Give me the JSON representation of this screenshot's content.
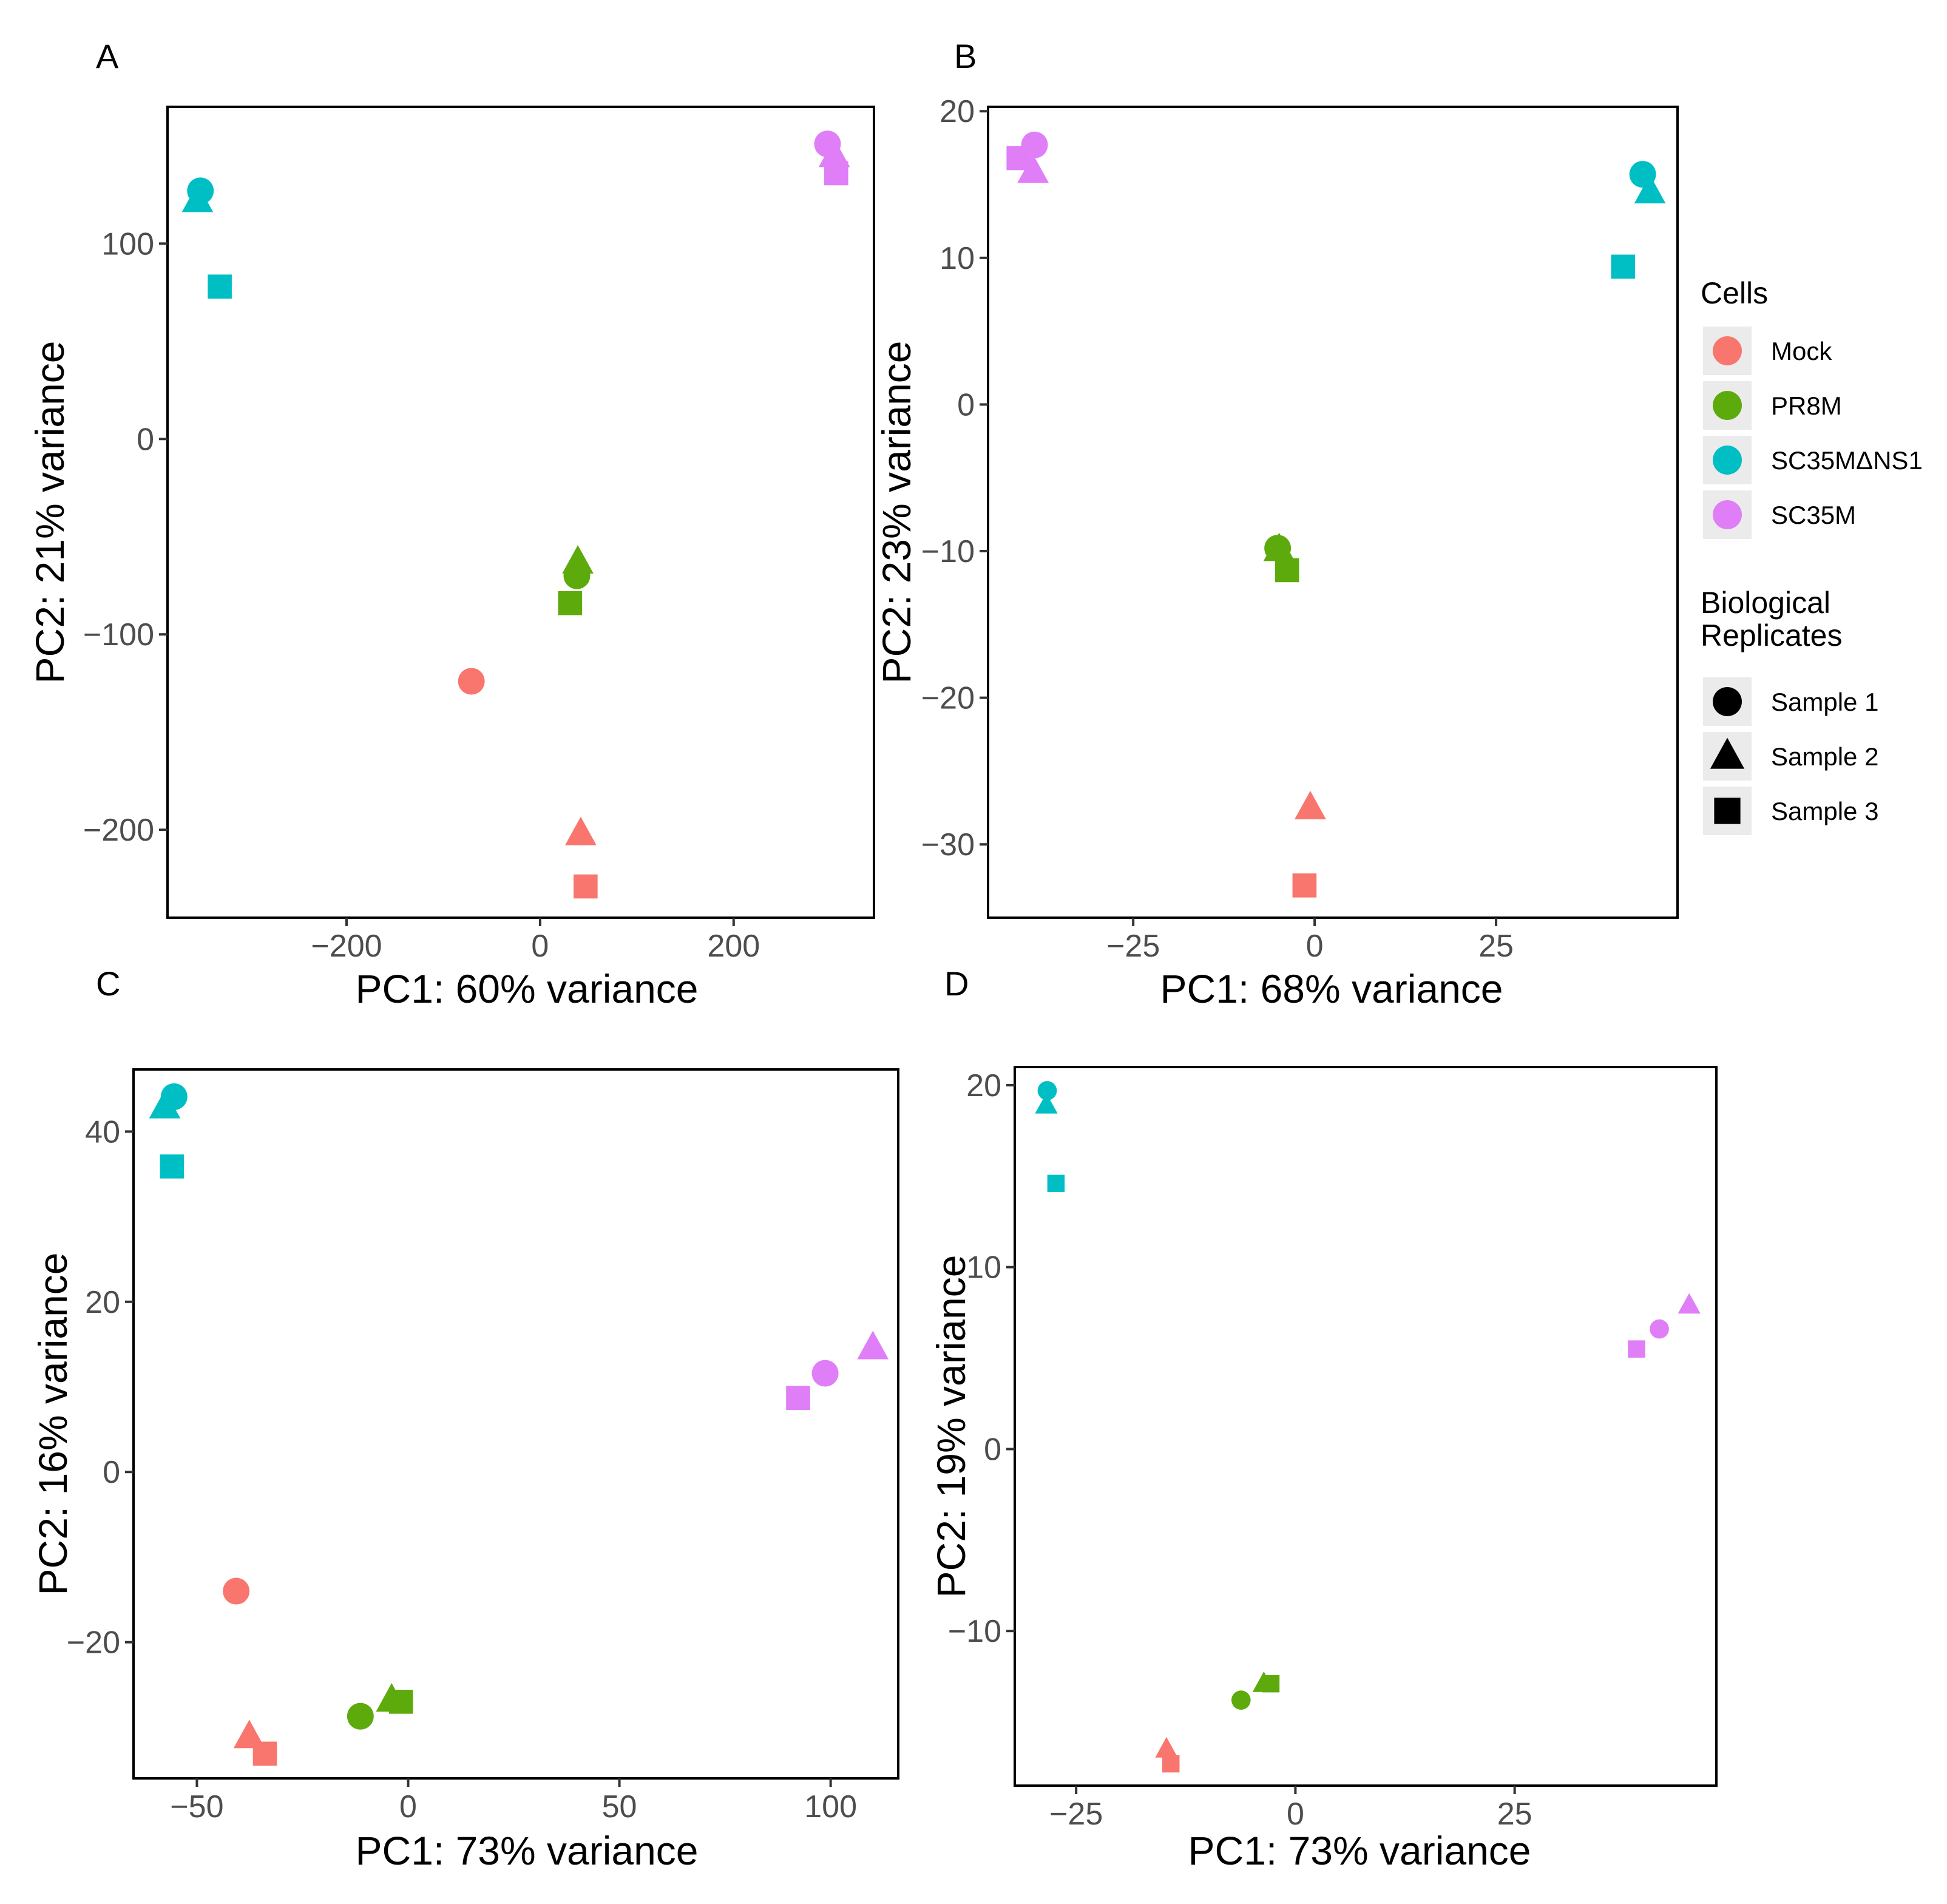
{
  "colors": {
    "Mock": "#F8766D",
    "PR8M": "#5DAA0C",
    "SC35MΔNS1": "#00BFC4",
    "SC35M": "#DF7EF7",
    "shape_key": "#000000"
  },
  "legend": {
    "cells_title": "Cells",
    "cells": [
      "Mock",
      "PR8M",
      "SC35MΔNS1",
      "SC35M"
    ],
    "replicates_title": "Biological Replicates",
    "replicates_title_lines": [
      "Biological",
      "Replicates"
    ],
    "replicates": [
      {
        "label": "Sample 1",
        "shape": "circle"
      },
      {
        "label": "Sample 2",
        "shape": "triangle"
      },
      {
        "label": "Sample 3",
        "shape": "square"
      }
    ]
  },
  "chart_data": [
    {
      "panel": "A",
      "type": "scatter",
      "xlabel": "PC1: 60% variance",
      "ylabel": "PC2: 21% variance",
      "xlim": [
        -385,
        345
      ],
      "ylim": [
        -245,
        170
      ],
      "xticks": [
        -200,
        0,
        200
      ],
      "xtick_labels": [
        "−200",
        "0",
        "200"
      ],
      "yticks": [
        100,
        0,
        -100,
        -200
      ],
      "ytick_labels": [
        "100",
        "0",
        "−100",
        "−200"
      ],
      "points": [
        {
          "cell": "SC35MΔNS1",
          "sample": "Sample 1",
          "x": -351,
          "y": 127
        },
        {
          "cell": "SC35MΔNS1",
          "sample": "Sample 2",
          "x": -354,
          "y": 122
        },
        {
          "cell": "SC35MΔNS1",
          "sample": "Sample 3",
          "x": -331,
          "y": 78
        },
        {
          "cell": "SC35M",
          "sample": "Sample 1",
          "x": 297,
          "y": 151
        },
        {
          "cell": "SC35M",
          "sample": "Sample 2",
          "x": 304,
          "y": 145
        },
        {
          "cell": "SC35M",
          "sample": "Sample 3",
          "x": 306,
          "y": 136
        },
        {
          "cell": "PR8M",
          "sample": "Sample 1",
          "x": 38,
          "y": -70
        },
        {
          "cell": "PR8M",
          "sample": "Sample 2",
          "x": 39,
          "y": -63
        },
        {
          "cell": "PR8M",
          "sample": "Sample 3",
          "x": 31,
          "y": -84
        },
        {
          "cell": "Mock",
          "sample": "Sample 1",
          "x": -71,
          "y": -124
        },
        {
          "cell": "Mock",
          "sample": "Sample 2",
          "x": 42,
          "y": -202
        },
        {
          "cell": "Mock",
          "sample": "Sample 3",
          "x": 47,
          "y": -229
        }
      ]
    },
    {
      "panel": "B",
      "type": "scatter",
      "xlabel": "PC1: 68% variance",
      "ylabel": "PC2: 23% variance",
      "xlim": [
        -45,
        50
      ],
      "ylim": [
        -35,
        20.3
      ],
      "xticks": [
        -25,
        0,
        25
      ],
      "xtick_labels": [
        "−25",
        "0",
        "25"
      ],
      "yticks": [
        20,
        10,
        0,
        -10,
        -20,
        -30
      ],
      "ytick_labels": [
        "20",
        "10",
        "0",
        "−10",
        "−20",
        "−30"
      ],
      "points": [
        {
          "cell": "SC35M",
          "sample": "Sample 1",
          "x": -38.6,
          "y": 17.7
        },
        {
          "cell": "SC35M",
          "sample": "Sample 2",
          "x": -38.8,
          "y": 15.9
        },
        {
          "cell": "SC35M",
          "sample": "Sample 3",
          "x": -40.8,
          "y": 16.8
        },
        {
          "cell": "SC35MΔNS1",
          "sample": "Sample 1",
          "x": 45.2,
          "y": 15.7
        },
        {
          "cell": "SC35MΔNS1",
          "sample": "Sample 2",
          "x": 46.2,
          "y": 14.5
        },
        {
          "cell": "SC35MΔNS1",
          "sample": "Sample 3",
          "x": 42.5,
          "y": 9.4
        },
        {
          "cell": "PR8M",
          "sample": "Sample 1",
          "x": -5.1,
          "y": -9.8
        },
        {
          "cell": "PR8M",
          "sample": "Sample 2",
          "x": -4.9,
          "y": -9.9
        },
        {
          "cell": "PR8M",
          "sample": "Sample 3",
          "x": -3.8,
          "y": -11.3
        },
        {
          "cell": "Mock",
          "sample": "Sample 2",
          "x": -0.6,
          "y": -27.5
        },
        {
          "cell": "Mock",
          "sample": "Sample 3",
          "x": -1.4,
          "y": -32.8
        }
      ]
    },
    {
      "panel": "C",
      "type": "scatter",
      "xlabel": "PC1: 73% variance",
      "ylabel": "PC2: 16% variance",
      "xlim": [
        -65,
        116
      ],
      "ylim": [
        -36,
        47.3
      ],
      "xticks": [
        -50,
        0,
        50,
        100
      ],
      "xtick_labels": [
        "−50",
        "0",
        "50",
        "100"
      ],
      "yticks": [
        40,
        20,
        0,
        -20
      ],
      "ytick_labels": [
        "40",
        "20",
        "0",
        "−20"
      ],
      "points": [
        {
          "cell": "SC35MΔNS1",
          "sample": "Sample 1",
          "x": -55.4,
          "y": 44.1
        },
        {
          "cell": "SC35MΔNS1",
          "sample": "Sample 2",
          "x": -57.6,
          "y": 42.9
        },
        {
          "cell": "SC35MΔNS1",
          "sample": "Sample 3",
          "x": -55.9,
          "y": 35.9
        },
        {
          "cell": "SC35M",
          "sample": "Sample 1",
          "x": 98.7,
          "y": 11.6
        },
        {
          "cell": "SC35M",
          "sample": "Sample 2",
          "x": 110,
          "y": 14.6
        },
        {
          "cell": "SC35M",
          "sample": "Sample 3",
          "x": 92.3,
          "y": 8.7
        },
        {
          "cell": "PR8M",
          "sample": "Sample 1",
          "x": -11.3,
          "y": -28.7
        },
        {
          "cell": "PR8M",
          "sample": "Sample 2",
          "x": -3.9,
          "y": -26.8
        },
        {
          "cell": "PR8M",
          "sample": "Sample 3",
          "x": -1.7,
          "y": -27.0
        },
        {
          "cell": "Mock",
          "sample": "Sample 1",
          "x": -40.7,
          "y": -14.0
        },
        {
          "cell": "Mock",
          "sample": "Sample 2",
          "x": -37.6,
          "y": -31.1
        },
        {
          "cell": "Mock",
          "sample": "Sample 3",
          "x": -33.9,
          "y": -33.1
        }
      ]
    },
    {
      "panel": "D",
      "type": "scatter",
      "xlabel": "PC1: 73% variance",
      "ylabel": "PC2: 19% variance",
      "xlim": [
        -32,
        48
      ],
      "ylim": [
        -18.5,
        21
      ],
      "xticks": [
        -25,
        0,
        25
      ],
      "xtick_labels": [
        "−25",
        "0",
        "25"
      ],
      "yticks": [
        20,
        10,
        0,
        -10
      ],
      "ytick_labels": [
        "20",
        "10",
        "0",
        "−10"
      ],
      "points": [
        {
          "cell": "SC35MΔNS1",
          "sample": "Sample 1",
          "x": -28.3,
          "y": 19.7
        },
        {
          "cell": "SC35MΔNS1",
          "sample": "Sample 2",
          "x": -28.4,
          "y": 18.9
        },
        {
          "cell": "SC35MΔNS1",
          "sample": "Sample 3",
          "x": -27.3,
          "y": 14.6
        },
        {
          "cell": "SC35M",
          "sample": "Sample 1",
          "x": 41.5,
          "y": 6.6
        },
        {
          "cell": "SC35M",
          "sample": "Sample 2",
          "x": 44.9,
          "y": 7.9
        },
        {
          "cell": "SC35M",
          "sample": "Sample 3",
          "x": 38.9,
          "y": 5.5
        },
        {
          "cell": "PR8M",
          "sample": "Sample 1",
          "x": -6.2,
          "y": -13.8
        },
        {
          "cell": "PR8M",
          "sample": "Sample 2",
          "x": -3.6,
          "y": -12.9
        },
        {
          "cell": "PR8M",
          "sample": "Sample 3",
          "x": -2.8,
          "y": -12.9
        },
        {
          "cell": "Mock",
          "sample": "Sample 2",
          "x": -14.7,
          "y": -16.5
        },
        {
          "cell": "Mock",
          "sample": "Sample 3",
          "x": -14.2,
          "y": -17.3
        }
      ]
    }
  ]
}
